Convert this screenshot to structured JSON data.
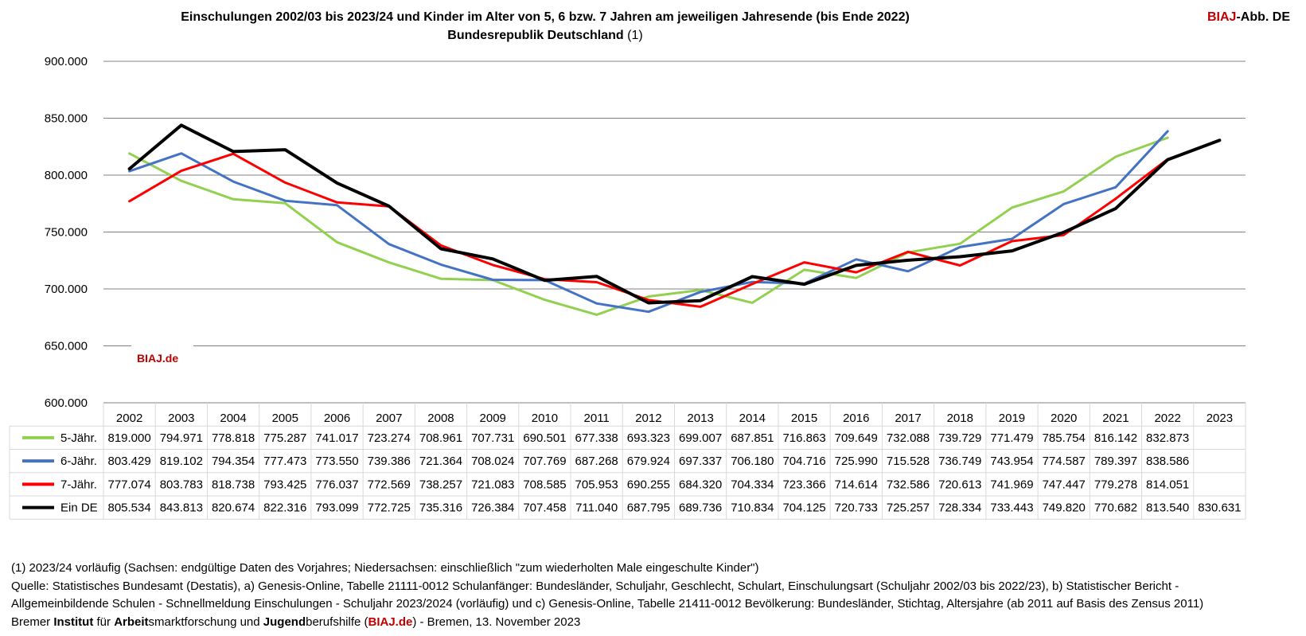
{
  "header": {
    "title_line1": "Einschulungen 2002/03 bis 2023/24 und Kinder im Alter von 5, 6 bzw. 7 Jahren am  jeweiligen Jahresende (bis Ende 2022)",
    "title_line2": "Bundesrepublik Deutschland",
    "title_note": "(1)",
    "logo_red": "BIAJ",
    "logo_rest": "-Abb. DE"
  },
  "watermark": "BIAJ.de",
  "colors": {
    "series_5": "#92d050",
    "series_6": "#4472c4",
    "series_7": "#ff0000",
    "series_ein": "#000000",
    "grid": "#808080",
    "brand_red": "#c00000"
  },
  "chart_data": {
    "type": "line",
    "title": "Einschulungen 2002/03 bis 2023/24 und Kinder im Alter von 5, 6 bzw. 7 Jahren am  jeweiligen Jahresende (bis Ende 2022)",
    "subtitle": "Bundesrepublik Deutschland (1)",
    "categories": [
      "2002",
      "2003",
      "2004",
      "2005",
      "2006",
      "2007",
      "2008",
      "2009",
      "2010",
      "2011",
      "2012",
      "2013",
      "2014",
      "2015",
      "2016",
      "2017",
      "2018",
      "2019",
      "2020",
      "2021",
      "2022",
      "2023"
    ],
    "ylim": [
      600000,
      900000
    ],
    "yticks": [
      600000,
      650000,
      700000,
      750000,
      800000,
      850000,
      900000
    ],
    "ytick_labels": [
      "600.000",
      "650.000",
      "700.000",
      "750.000",
      "800.000",
      "850.000",
      "900.000"
    ],
    "grid": true,
    "legend": "data-table-below",
    "series": [
      {
        "name": "5-Jähr.",
        "color": "#92d050",
        "values": [
          819000,
          794971,
          778818,
          775287,
          741017,
          723274,
          708961,
          707731,
          690501,
          677338,
          693323,
          699007,
          687851,
          716863,
          709649,
          732088,
          739729,
          771479,
          785754,
          816142,
          832873,
          null
        ],
        "labels": [
          "819.000",
          "794.971",
          "778.818",
          "775.287",
          "741.017",
          "723.274",
          "708.961",
          "707.731",
          "690.501",
          "677.338",
          "693.323",
          "699.007",
          "687.851",
          "716.863",
          "709.649",
          "732.088",
          "739.729",
          "771.479",
          "785.754",
          "816.142",
          "832.873",
          ""
        ]
      },
      {
        "name": "6-Jähr.",
        "color": "#4472c4",
        "values": [
          803429,
          819102,
          794354,
          777473,
          773550,
          739386,
          721364,
          708024,
          707769,
          687268,
          679924,
          697337,
          706180,
          704716,
          725990,
          715528,
          736749,
          743954,
          774587,
          789397,
          838586,
          null
        ],
        "labels": [
          "803.429",
          "819.102",
          "794.354",
          "777.473",
          "773.550",
          "739.386",
          "721.364",
          "708.024",
          "707.769",
          "687.268",
          "679.924",
          "697.337",
          "706.180",
          "704.716",
          "725.990",
          "715.528",
          "736.749",
          "743.954",
          "774.587",
          "789.397",
          "838.586",
          ""
        ]
      },
      {
        "name": "7-Jähr.",
        "color": "#ff0000",
        "values": [
          777074,
          803783,
          818738,
          793425,
          776037,
          772569,
          738257,
          721083,
          708585,
          705953,
          690255,
          684320,
          704334,
          723366,
          714614,
          732586,
          720613,
          741969,
          747447,
          779278,
          814051,
          null
        ],
        "labels": [
          "777.074",
          "803.783",
          "818.738",
          "793.425",
          "776.037",
          "772.569",
          "738.257",
          "721.083",
          "708.585",
          "705.953",
          "690.255",
          "684.320",
          "704.334",
          "723.366",
          "714.614",
          "732.586",
          "720.613",
          "741.969",
          "747.447",
          "779.278",
          "814.051",
          ""
        ]
      },
      {
        "name": "Ein DE",
        "color": "#000000",
        "values": [
          805534,
          843813,
          820674,
          822316,
          793099,
          772725,
          735316,
          726384,
          707458,
          711040,
          687795,
          689736,
          710834,
          704125,
          720733,
          725257,
          728334,
          733443,
          749820,
          770682,
          813540,
          830631
        ],
        "labels": [
          "805.534",
          "843.813",
          "820.674",
          "822.316",
          "793.099",
          "772.725",
          "735.316",
          "726.384",
          "707.458",
          "711.040",
          "687.795",
          "689.736",
          "710.834",
          "704.125",
          "720.733",
          "725.257",
          "728.334",
          "733.443",
          "749.820",
          "770.682",
          "813.540",
          "830.631"
        ]
      }
    ]
  },
  "footer": {
    "line1": "(1) 2023/24 vorläufig (Sachsen: endgültige Daten des Vorjahres; Niedersachsen: einschließlich \"zum wiederholten Male eingeschulte Kinder\")",
    "line2": "Quelle: Statistisches Bundesamt (Destatis), a) Genesis-Online, Tabelle 21111-0012 Schulanfänger: Bundesländer, Schuljahr, Geschlecht, Schulart, Einschulungsart (Schuljahr 2002/03 bis 2022/23), b) Statistischer Bericht -",
    "line3": "Allgemeinbildende Schulen - Schnellmeldung Einschulungen - Schuljahr 2023/2024 (vorläufig) und c) Genesis-Online, Tabelle 21411-0012  Bevölkerung: Bundesländer, Stichtag, Altersjahre (ab 2011 auf Basis des Zensus 2011)",
    "line4_a": "Bremer ",
    "line4_b": "Institut",
    "line4_c": " für ",
    "line4_d": "Arbeit",
    "line4_e": "smarktforschung und ",
    "line4_f": "Jugend",
    "line4_g": "berufshilfe (",
    "line4_h": "BIAJ.de",
    "line4_i": ") - Bremen, 13. November 2023"
  }
}
